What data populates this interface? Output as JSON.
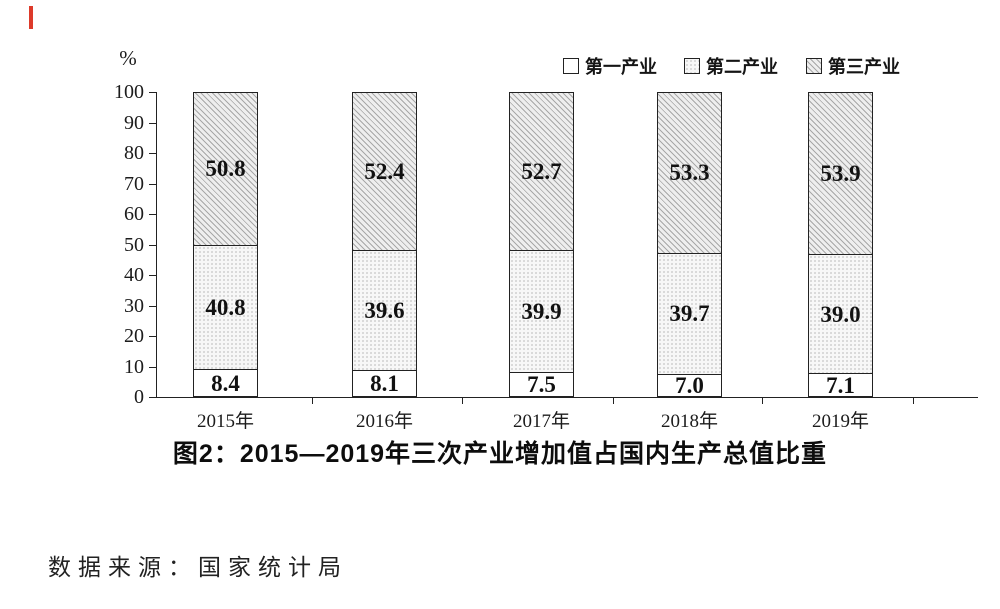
{
  "page": {
    "source_note": "数据来源：国家统计局"
  },
  "decorations": {
    "red_marker_color": "#dd3a2a"
  },
  "chart_data": {
    "type": "bar",
    "subtype": "stacked-column",
    "title": "图2：2015—2019年三次产业增加值占国内生产总值比重",
    "unit_label": "%",
    "categories": [
      "2015年",
      "2016年",
      "2017年",
      "2018年",
      "2019年"
    ],
    "series": [
      {
        "name": "第一产业",
        "pattern": "plain-white",
        "values": [
          8.4,
          8.1,
          7.5,
          7.0,
          7.1
        ]
      },
      {
        "name": "第二产业",
        "pattern": "fine-dots",
        "values": [
          40.8,
          39.6,
          39.9,
          39.7,
          39.0
        ]
      },
      {
        "name": "第三产业",
        "pattern": "diagonal-hatch",
        "values": [
          50.8,
          52.4,
          52.7,
          53.3,
          53.9
        ]
      }
    ],
    "ylim": [
      0,
      100
    ],
    "y_ticks": [
      0,
      10,
      20,
      30,
      40,
      50,
      60,
      70,
      80,
      90,
      100
    ],
    "grid": false,
    "legend_position": "top-right",
    "axis_color": "#222222",
    "bar_border_color": "#222222",
    "value_label_color": "#111111"
  }
}
